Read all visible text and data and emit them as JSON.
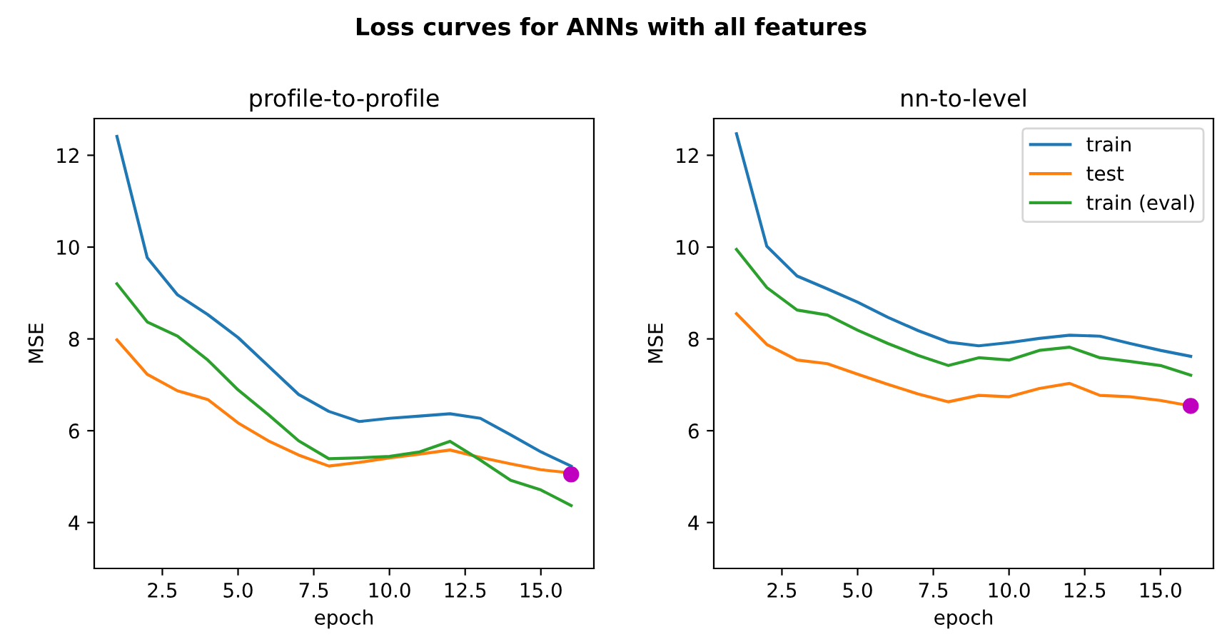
{
  "chart_data": [
    {
      "type": "line",
      "title": "profile-to-profile",
      "annotations": [
        "Loss curves for ANNs with all features"
      ],
      "xlabel": "epoch",
      "ylabel": "MSE",
      "x": [
        1,
        2,
        3,
        4,
        5,
        6,
        7,
        8,
        9,
        10,
        11,
        12,
        13,
        14,
        15,
        16
      ],
      "xlim": [
        0.25,
        16.75
      ],
      "xticks": [
        2.5,
        {
          "value": 5,
          "label": "5.0"
        },
        7.5,
        {
          "value": 10,
          "label": "10.0"
        },
        12.5,
        {
          "value": 15,
          "label": "15.0"
        }
      ],
      "ylim": [
        3,
        12.8
      ],
      "yticks": [
        4,
        6,
        8,
        10,
        12
      ],
      "grid": false,
      "legend": false,
      "series": [
        {
          "color": "#1f77b4",
          "values": [
            12.41,
            9.77,
            8.96,
            8.53,
            8.03,
            7.41,
            6.79,
            6.42,
            6.2,
            6.27,
            6.32,
            6.37,
            6.27,
            5.91,
            5.54,
            5.23
          ]
        },
        {
          "color": "#ff7f0e",
          "values": [
            7.98,
            7.23,
            6.87,
            6.68,
            6.17,
            5.78,
            5.47,
            5.23,
            5.31,
            5.41,
            5.49,
            5.58,
            5.42,
            5.28,
            5.15,
            5.08
          ]
        },
        {
          "color": "#2ca02c",
          "values": [
            9.2,
            8.37,
            8.06,
            7.54,
            6.89,
            6.35,
            5.78,
            5.39,
            5.41,
            5.44,
            5.54,
            5.77,
            5.36,
            4.92,
            4.71,
            4.37
          ]
        },
        {
          "type": "scatter",
          "marker": "circle",
          "color": "#bf00bf",
          "x": [
            16
          ],
          "values": [
            5.05
          ]
        }
      ]
    },
    {
      "type": "line",
      "title": "nn-to-level",
      "xlabel": "epoch",
      "ylabel": "MSE",
      "x": [
        1,
        2,
        3,
        4,
        5,
        6,
        7,
        8,
        9,
        10,
        11,
        12,
        13,
        14,
        15,
        16
      ],
      "xlim": [
        0.25,
        16.75
      ],
      "xticks": [
        2.5,
        {
          "value": 5,
          "label": "5.0"
        },
        7.5,
        {
          "value": 10,
          "label": "10.0"
        },
        12.5,
        {
          "value": 15,
          "label": "15.0"
        }
      ],
      "ylim": [
        3,
        12.8
      ],
      "yticks": [
        4,
        6,
        8,
        10,
        12
      ],
      "grid": false,
      "legend": "top right",
      "series": [
        {
          "name": "train",
          "color": "#1f77b4",
          "values": [
            12.47,
            10.02,
            9.37,
            9.09,
            8.8,
            8.47,
            8.18,
            7.93,
            7.85,
            7.92,
            8.01,
            8.08,
            8.06,
            7.9,
            7.75,
            7.62
          ]
        },
        {
          "name": "test",
          "color": "#ff7f0e",
          "values": [
            8.55,
            7.88,
            7.54,
            7.46,
            7.23,
            7.01,
            6.8,
            6.63,
            6.77,
            6.74,
            6.92,
            7.03,
            6.77,
            6.74,
            6.66,
            6.54
          ]
        },
        {
          "name": "train (eval)",
          "color": "#2ca02c",
          "values": [
            9.95,
            9.12,
            8.63,
            8.52,
            8.19,
            7.9,
            7.64,
            7.42,
            7.59,
            7.54,
            7.75,
            7.82,
            7.59,
            7.51,
            7.42,
            7.21
          ]
        },
        {
          "type": "scatter",
          "marker": "circle",
          "color": "#bf00bf",
          "x": [
            16
          ],
          "values": [
            6.54
          ]
        }
      ]
    }
  ]
}
